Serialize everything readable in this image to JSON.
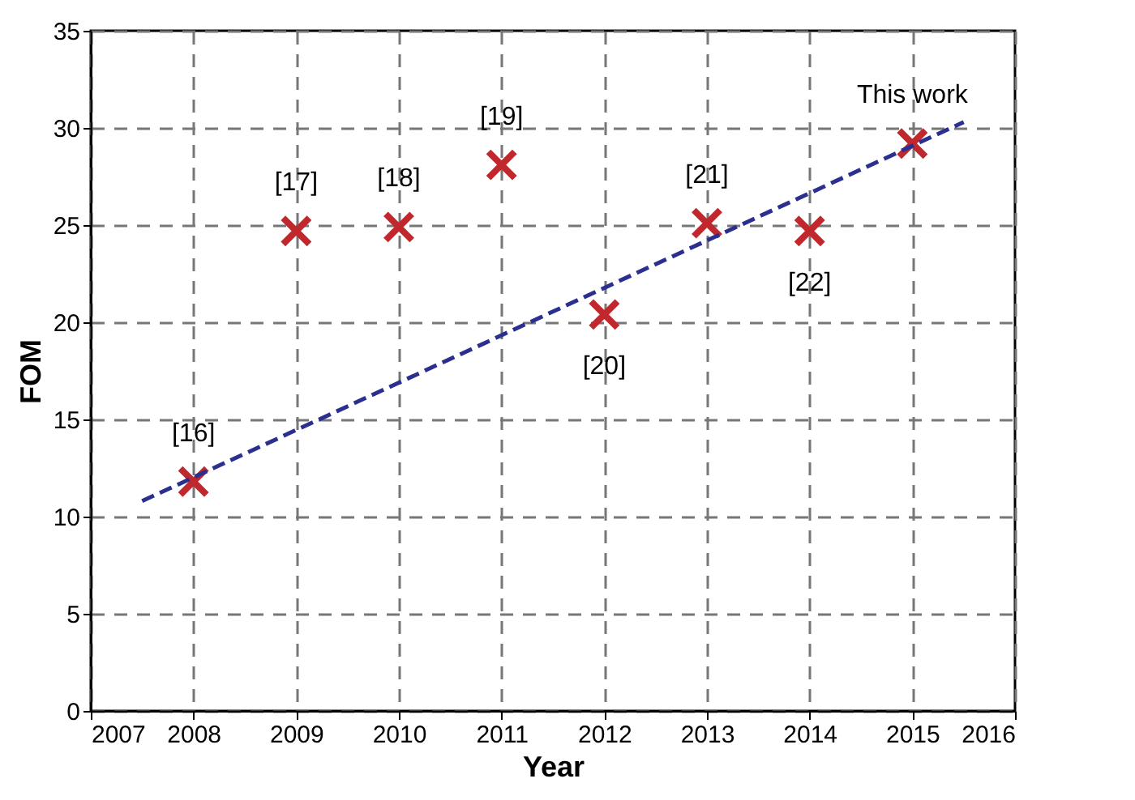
{
  "chart_data": {
    "type": "scatter",
    "xlabel": "Year",
    "ylabel": "FOM",
    "xlim": [
      2007,
      2016
    ],
    "xticks": [
      2007,
      2008,
      2009,
      2010,
      2011,
      2012,
      2013,
      2014,
      2015,
      2016
    ],
    "ylim": [
      0,
      35
    ],
    "yticks": [
      0,
      5,
      10,
      15,
      20,
      25,
      30,
      35
    ],
    "grid": true,
    "marker": "cross",
    "series": [
      {
        "color": "#c0282d",
        "x": [
          2008,
          2009,
          2010,
          2011,
          2012,
          2013,
          2014,
          2015
        ],
        "values": [
          11.8,
          24.7,
          24.9,
          28.1,
          20.4,
          25.1,
          24.7,
          29.2
        ]
      },
      {
        "type": "line",
        "color": "#2b2f8f",
        "line_style": "dashed",
        "marker": "none",
        "x": [
          2007.5,
          2015.5
        ],
        "values": [
          10.8,
          30.3
        ]
      }
    ],
    "annotations": [
      {
        "text": "[16]",
        "x": 2008,
        "y": 11.8
      },
      {
        "text": "[17]",
        "x": 2009,
        "y": 24.7
      },
      {
        "text": "[18]",
        "x": 2010,
        "y": 24.9
      },
      {
        "text": "[19]",
        "x": 2011,
        "y": 28.1
      },
      {
        "text": "[20]",
        "x": 2012,
        "y": 20.4
      },
      {
        "text": "[21]",
        "x": 2013,
        "y": 25.1
      },
      {
        "text": "[22]",
        "x": 2014,
        "y": 24.7
      },
      {
        "text": "This work",
        "x": 2015,
        "y": 29.2
      }
    ]
  }
}
